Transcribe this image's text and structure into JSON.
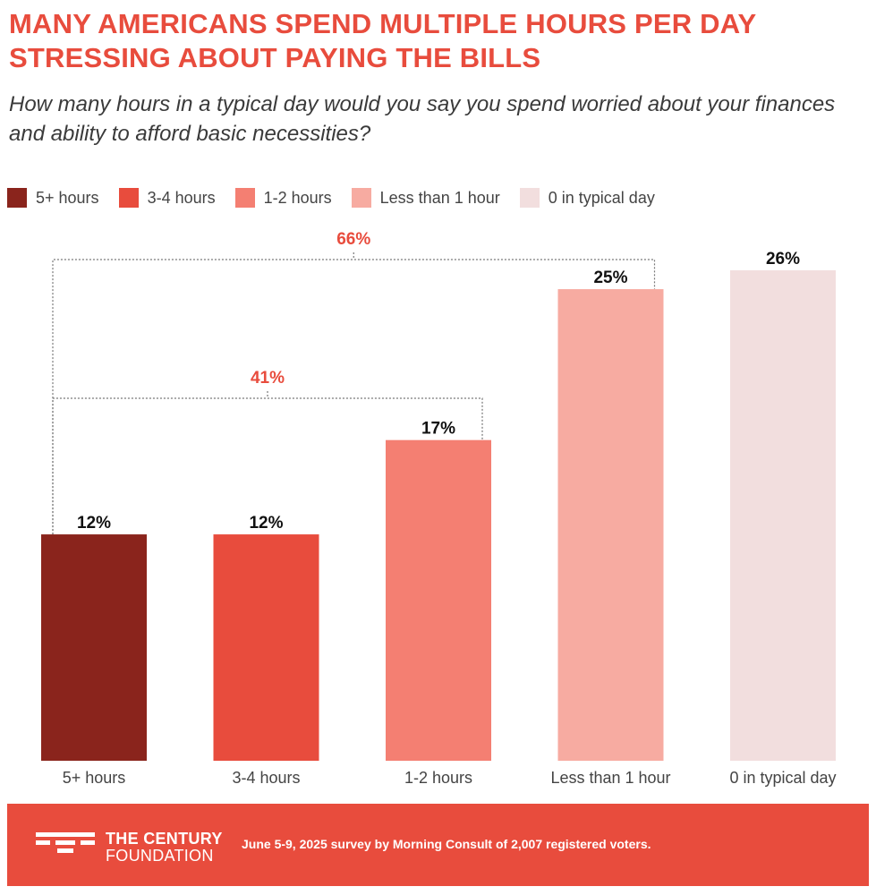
{
  "header": {
    "title_line1": "MANY AMERICANS SPEND MULTIPLE HOURS PER DAY",
    "title_line2": "STRESSING ABOUT PAYING THE BILLS",
    "subtitle_line1": "How many hours in a typical day would you say you spend worried about your finances",
    "subtitle_line2": "and ability to afford basic necessities?"
  },
  "legend": [
    {
      "label": "5+ hours",
      "color": "#8a241c"
    },
    {
      "label": "3-4 hours",
      "color": "#e84c3d"
    },
    {
      "label": "1-2 hours",
      "color": "#f47f72"
    },
    {
      "label": "Less than 1 hour",
      "color": "#f7aba1"
    },
    {
      "label": "0 in typical day",
      "color": "#f2dede"
    }
  ],
  "chart_data": {
    "type": "bar",
    "categories": [
      "5+ hours",
      "3-4 hours",
      "1-2 hours",
      "Less than 1 hour",
      "0 in typical day"
    ],
    "values": [
      12,
      12,
      17,
      25,
      26
    ],
    "value_labels": [
      "12%",
      "12%",
      "17%",
      "25%",
      "26%"
    ],
    "colors": [
      "#8a241c",
      "#e84c3d",
      "#f47f72",
      "#f7aba1",
      "#f2dede"
    ],
    "ylim": [
      0,
      26
    ],
    "grid": false,
    "legend_position": "top",
    "brackets": [
      {
        "label": "66%",
        "from": 0,
        "to": 3,
        "value": 66
      },
      {
        "label": "41%",
        "from": 0,
        "to": 2,
        "value": 41
      }
    ]
  },
  "footer": {
    "logo_line1": "THE CENTURY",
    "logo_line2": "FOUNDATION",
    "source": "June 5-9, 2025 survey by Morning Consult of 2,007 registered voters.",
    "background": "#e84c3d"
  }
}
